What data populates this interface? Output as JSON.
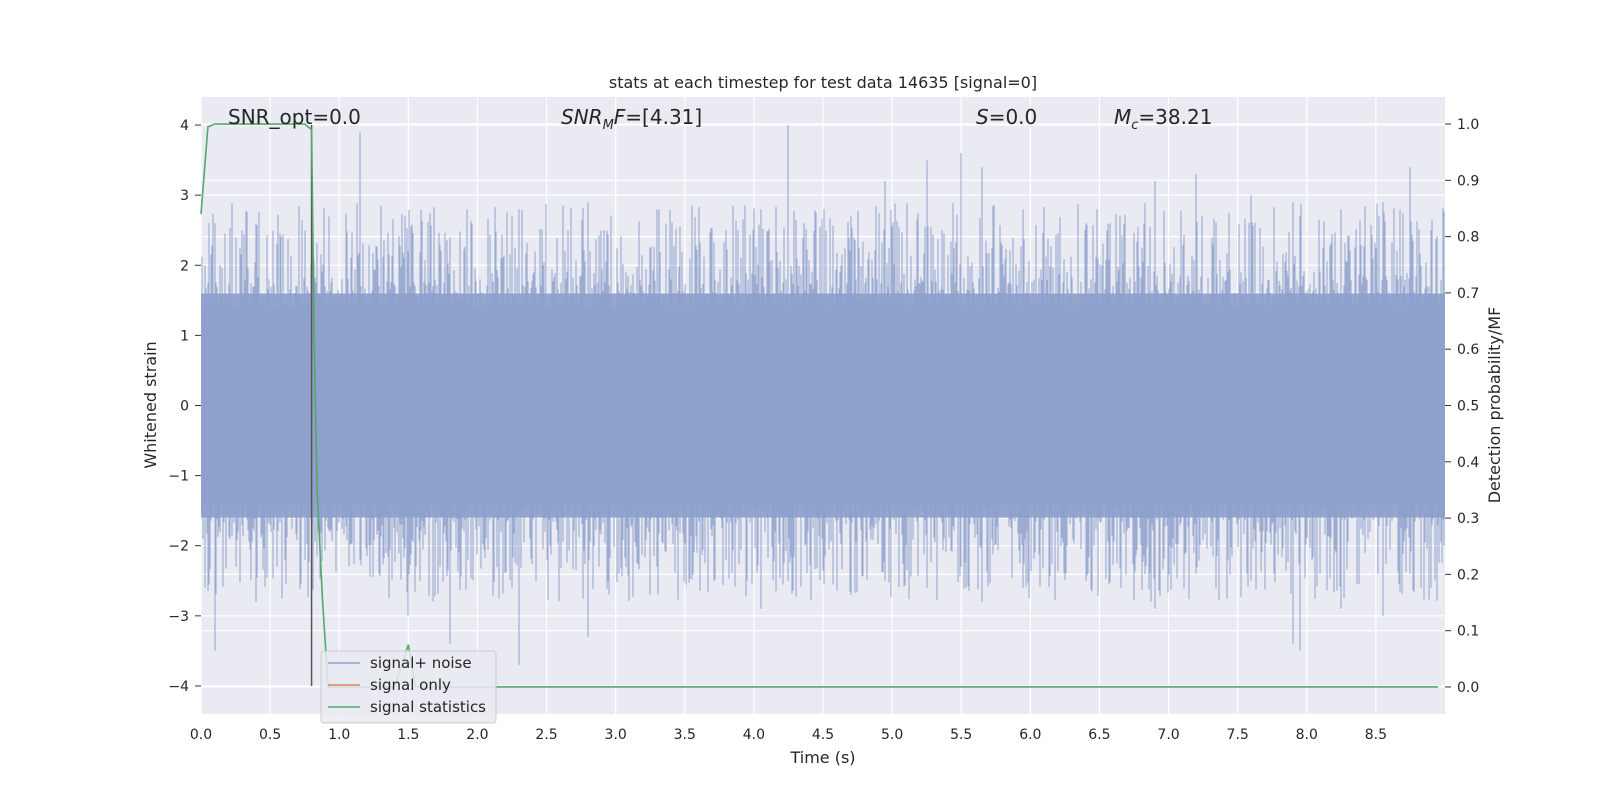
{
  "chart_data": {
    "type": "line",
    "title": "stats at each timestep for test data 14635 [signal=0]",
    "xlabel": "Time (s)",
    "ylabel": "Whitened strain",
    "ylabel_right": "Detection probability/MF",
    "xlim": [
      0.0,
      9.0
    ],
    "ylim": [
      -4.4,
      4.4
    ],
    "ylim_right": [
      -0.048,
      1.048
    ],
    "x_ticks": [
      "0.0",
      "0.5",
      "1.0",
      "1.5",
      "2.0",
      "2.5",
      "3.0",
      "3.5",
      "4.0",
      "4.5",
      "5.0",
      "5.5",
      "6.0",
      "6.5",
      "7.0",
      "7.5",
      "8.0",
      "8.5"
    ],
    "y_ticks": [
      "−4",
      "−3",
      "−2",
      "−1",
      "0",
      "1",
      "2",
      "3",
      "4"
    ],
    "y_ticks_right": [
      "0.0",
      "0.1",
      "0.2",
      "0.3",
      "0.4",
      "0.5",
      "0.6",
      "0.7",
      "0.8",
      "0.9",
      "1.0"
    ],
    "grid": true,
    "legend_position": "lower-left",
    "annotations": {
      "snr_opt": "SNR_opt=0.0",
      "snr_mf": "=[4.31]",
      "snr_mf_sym": "SNR",
      "snr_mf_sub": "M",
      "snr_mf_f": "F",
      "s_stat": "=0.0",
      "s_sym": "S",
      "mc": "=38.21",
      "mc_sym": "M",
      "mc_sub": "c"
    },
    "marker_line": {
      "x": 0.8,
      "y_range": [
        -4.0,
        4.0
      ],
      "color": "#555555"
    },
    "series": [
      {
        "name": "signal+ noise",
        "color": "#8da0cb",
        "kind": "noise",
        "spikes": [
          [
            0.03,
            2.0,
            -2.6
          ],
          [
            0.1,
            2.6,
            -3.5
          ],
          [
            0.25,
            2.4,
            -2.3
          ],
          [
            0.4,
            2.6,
            -2.8
          ],
          [
            0.55,
            2.3,
            -2.3
          ],
          [
            0.75,
            2.5,
            -2.2
          ],
          [
            1.15,
            3.9,
            -2.2
          ],
          [
            1.5,
            2.2,
            -3.0
          ],
          [
            1.8,
            2.4,
            -3.4
          ],
          [
            2.3,
            2.8,
            -3.7
          ],
          [
            2.8,
            2.9,
            -3.3
          ],
          [
            3.3,
            2.8,
            -2.3
          ],
          [
            3.8,
            2.5,
            -2.2
          ],
          [
            4.05,
            2.8,
            -2.9
          ],
          [
            4.25,
            4.0,
            -2.5
          ],
          [
            4.7,
            2.7,
            -2.7
          ],
          [
            4.95,
            3.2,
            -2.5
          ],
          [
            5.25,
            3.5,
            -2.6
          ],
          [
            5.5,
            3.6,
            -2.3
          ],
          [
            5.65,
            3.4,
            -2.8
          ],
          [
            5.95,
            2.8,
            -2.6
          ],
          [
            6.4,
            2.6,
            -2.5
          ],
          [
            6.9,
            3.2,
            -2.9
          ],
          [
            7.2,
            3.3,
            -2.4
          ],
          [
            7.6,
            3.0,
            -2.5
          ],
          [
            7.9,
            2.9,
            -3.4
          ],
          [
            7.95,
            2.7,
            -3.5
          ],
          [
            8.25,
            2.8,
            -2.9
          ],
          [
            8.55,
            2.9,
            -3.0
          ],
          [
            8.75,
            3.4,
            -2.4
          ],
          [
            8.9,
            2.5,
            -2.6
          ]
        ]
      },
      {
        "name": "signal only",
        "color": "#dd8452",
        "x": [
          0.0,
          9.0
        ],
        "y": [
          0.0,
          0.0
        ]
      },
      {
        "name": "signal statistics",
        "color": "#55a868",
        "axis": "right",
        "x": [
          0.0,
          0.05,
          0.1,
          0.2,
          0.4,
          0.6,
          0.75,
          0.8,
          0.82,
          0.84,
          0.88,
          0.92,
          1.0,
          1.4,
          1.5,
          1.55,
          2.0,
          4.0,
          6.0,
          8.0,
          8.95
        ],
        "y": [
          0.84,
          0.995,
          1.0,
          1.0,
          1.0,
          1.0,
          1.0,
          0.99,
          0.6,
          0.35,
          0.15,
          0.0,
          0.0,
          0.0,
          0.075,
          0.0,
          0.0,
          0.0,
          0.0,
          0.0,
          0.0
        ]
      }
    ]
  }
}
